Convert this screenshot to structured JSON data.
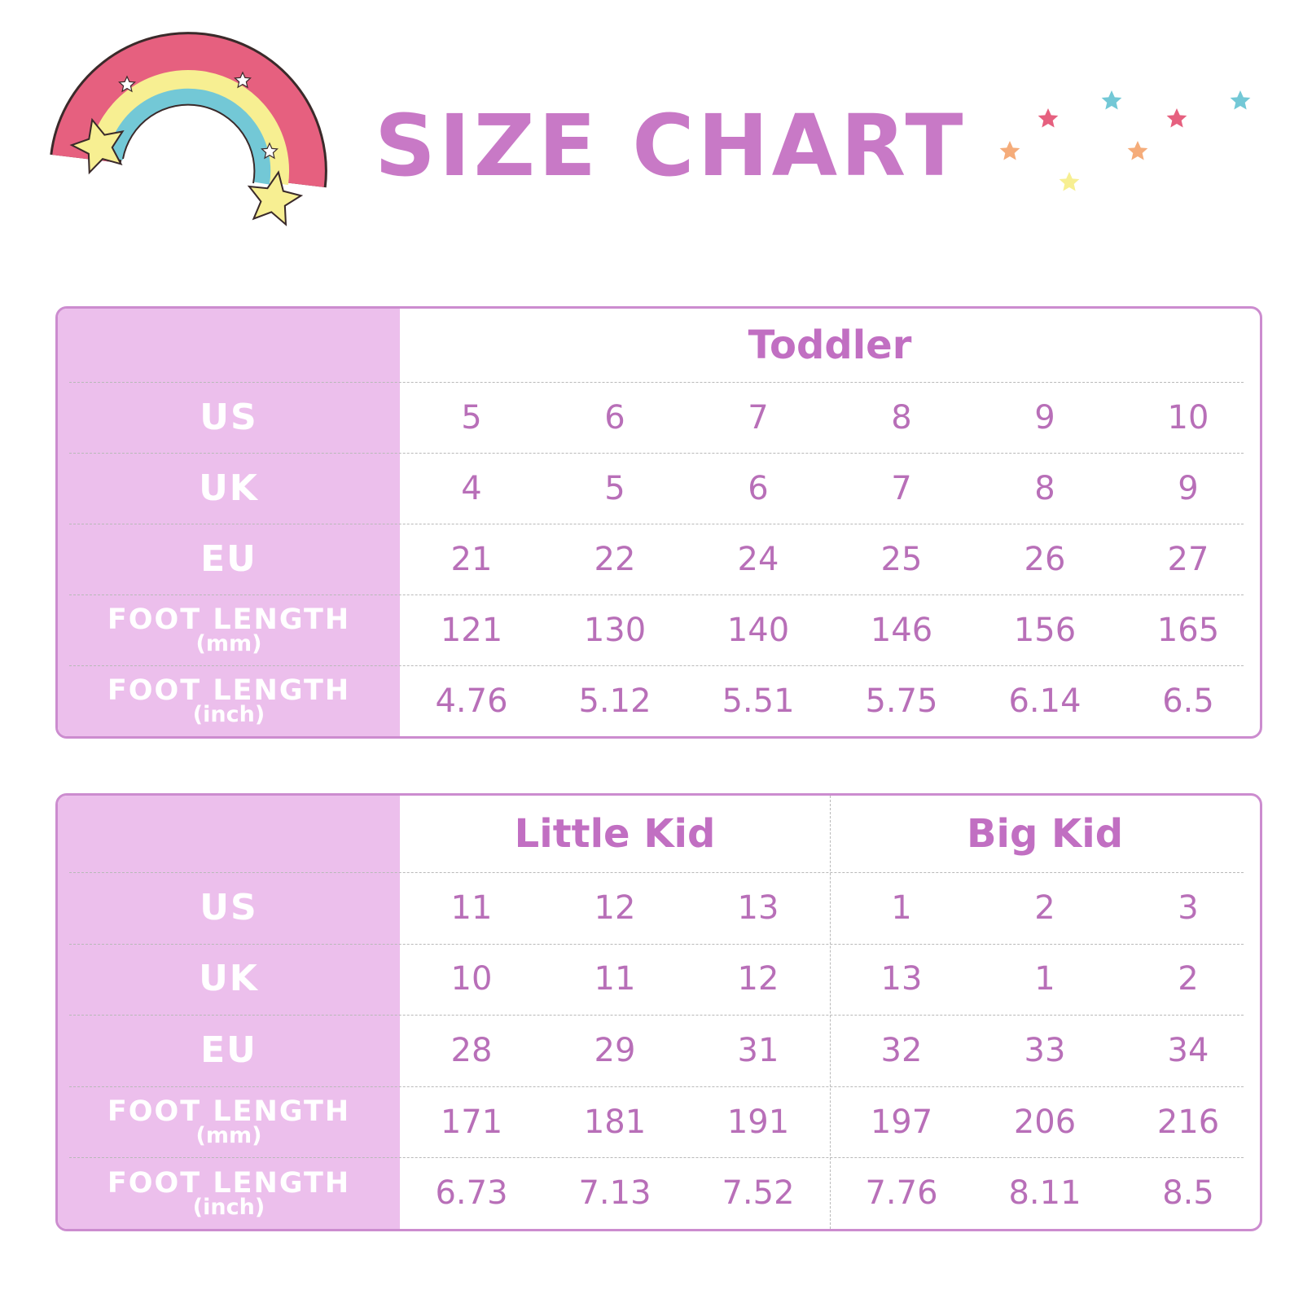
{
  "title": "SIZE CHART",
  "tables": [
    {
      "rows": [
        {
          "label": "US"
        },
        {
          "label": "UK"
        },
        {
          "label": "EU"
        },
        {
          "label": "FOOT LENGTH",
          "unit": "(mm)"
        },
        {
          "label": "FOOT LENGTH",
          "unit": "(inch)"
        }
      ],
      "groups": [
        {
          "name": "Toddler",
          "values": [
            [
              5,
              6,
              7,
              8,
              9,
              10
            ],
            [
              4,
              5,
              6,
              7,
              8,
              9
            ],
            [
              21,
              22,
              24,
              25,
              26,
              27
            ],
            [
              121,
              130,
              140,
              146,
              156,
              165
            ],
            [
              4.76,
              5.12,
              5.51,
              5.75,
              6.14,
              6.5
            ]
          ]
        }
      ]
    },
    {
      "rows": [
        {
          "label": "US"
        },
        {
          "label": "UK"
        },
        {
          "label": "EU"
        },
        {
          "label": "FOOT LENGTH",
          "unit": "(mm)"
        },
        {
          "label": "FOOT LENGTH",
          "unit": "(inch)"
        }
      ],
      "groups": [
        {
          "name": "Little Kid",
          "values": [
            [
              11,
              12,
              13
            ],
            [
              10,
              11,
              12
            ],
            [
              28,
              29,
              31
            ],
            [
              171,
              181,
              191
            ],
            [
              6.73,
              7.13,
              7.52
            ]
          ]
        },
        {
          "name": "Big Kid",
          "values": [
            [
              1,
              2,
              3
            ],
            [
              13,
              1,
              2
            ],
            [
              32,
              33,
              34
            ],
            [
              197,
              206,
              216
            ],
            [
              7.76,
              8.11,
              8.5
            ]
          ]
        }
      ]
    }
  ]
}
